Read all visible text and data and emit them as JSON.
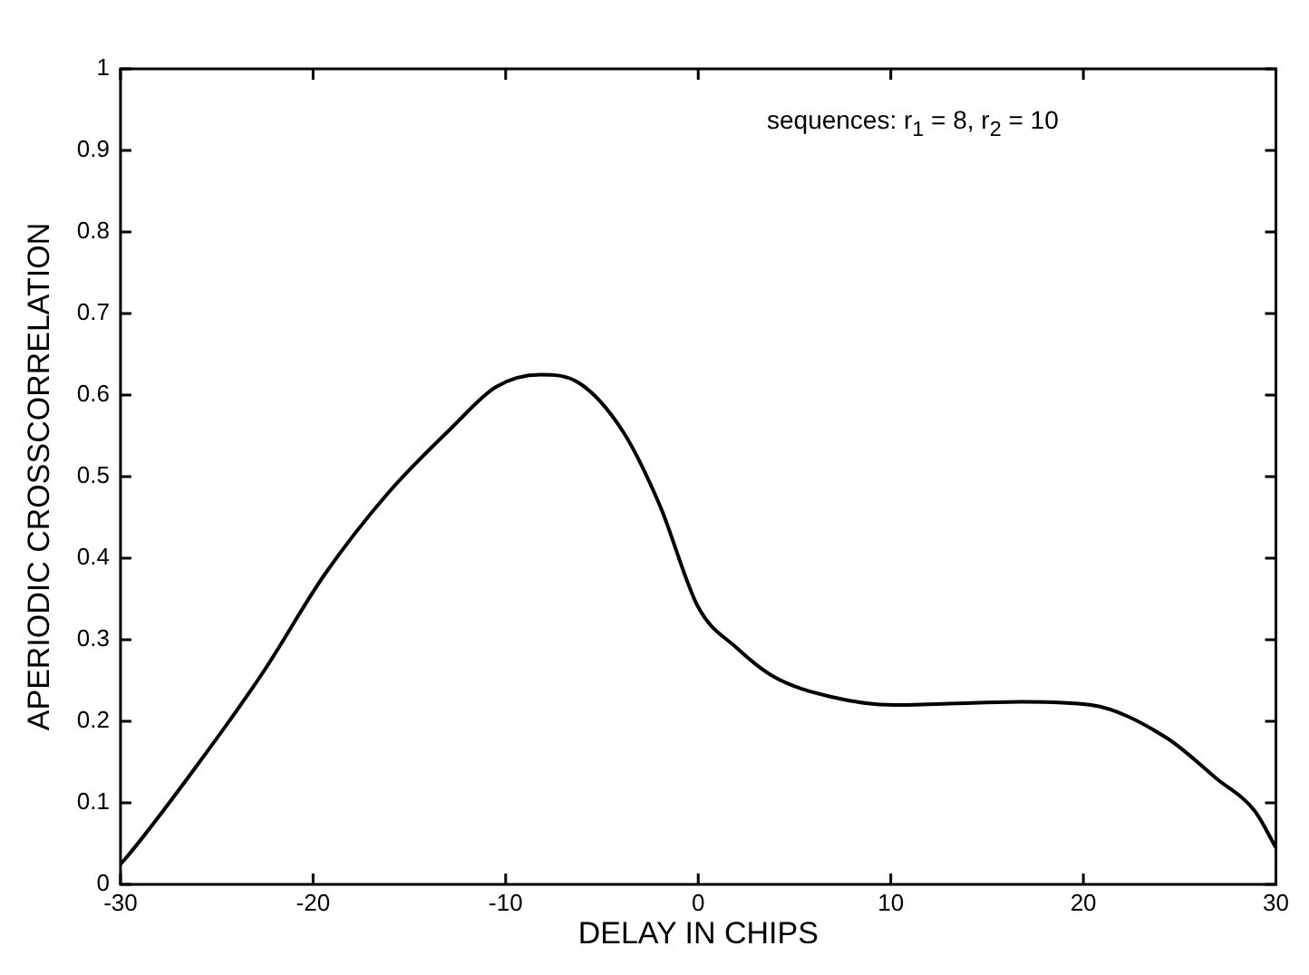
{
  "chart_data": {
    "type": "line",
    "xlabel": "DELAY IN CHIPS",
    "ylabel": "APERIODIC CROSSCORRELATION",
    "annotations": [
      "sequences: r$_{1}$ = 8, r$_{2}$ = 10"
    ],
    "series": [
      {
        "color": "#000000",
        "x": [
          -30,
          -29.8,
          -25.9,
          -22.6,
          -19.4,
          -16.1,
          -12.8,
          -10.5,
          -8.2,
          -6.2,
          -3.9,
          -2.0,
          0.0,
          2.0,
          3.9,
          6.9,
          10.2,
          13.5,
          16.8,
          20.4,
          24.3,
          26.9,
          28.9,
          30
        ],
        "values": [
          0.025,
          0.03,
          0.15,
          0.26,
          0.38,
          0.48,
          0.56,
          0.61,
          0.625,
          0.615,
          0.555,
          0.465,
          0.34,
          0.29,
          0.255,
          0.23,
          0.22,
          0.222,
          0.224,
          0.22,
          0.18,
          0.13,
          0.09,
          0.045
        ]
      }
    ],
    "xlim": [
      -30,
      30
    ],
    "xticks": [
      -30,
      -20,
      -10,
      0,
      10,
      20,
      30
    ],
    "ylim": [
      0,
      1
    ],
    "yticks": [
      0,
      0.1,
      0.2,
      0.3,
      0.4,
      0.5,
      0.6,
      0.7,
      0.8,
      0.9,
      1
    ],
    "grid": false,
    "legend": false,
    "marker": "none",
    "line_style": "solid"
  }
}
